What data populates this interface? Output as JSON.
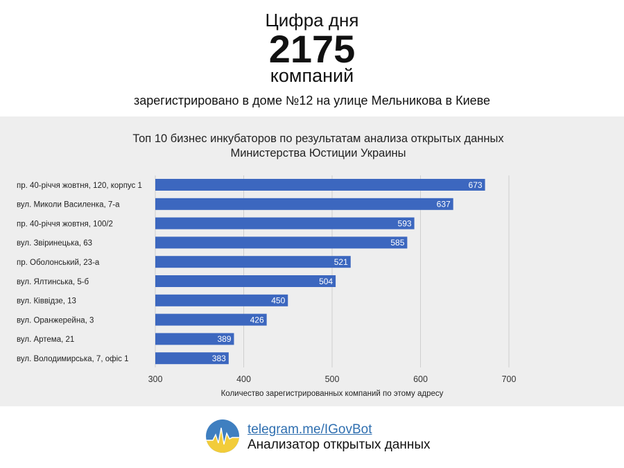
{
  "header": {
    "line1": "Цифра дня",
    "number": "2175",
    "line3": "компаний",
    "line4": "зарегистрировано в доме №12 на улице Мельникова в Киеве"
  },
  "chart_data": {
    "type": "bar",
    "orientation": "horizontal",
    "title_lines": [
      "Топ 10 бизнес инкубаторов по результатам анализа открытых данных",
      "Министерства Юстиции Украины"
    ],
    "categories": [
      "пр. 40-річчя жовтня, 120, корпус 1",
      "вул. Миколи Василенка, 7-а",
      "пр. 40-річчя жовтня, 100/2",
      "вул. Звіринецька, 63",
      "пр. Оболонський, 23-а",
      "вул. Ялтинська, 5-б",
      "вул. Ківвідзе, 13",
      "вул. Оранжерейна, 3",
      "вул. Артема, 21",
      "вул. Володимирська, 7, офіс 1"
    ],
    "values": [
      673,
      637,
      593,
      585,
      521,
      504,
      450,
      426,
      389,
      383
    ],
    "xlim": [
      300,
      700
    ],
    "xticks": [
      300,
      400,
      500,
      600,
      700
    ],
    "xlabel": "Количество зарегистрированных компаний по этому адресу",
    "grid": "vertical",
    "bar_color": "#3c67bf",
    "data_labels": "inside-end"
  },
  "footer": {
    "link": "telegram.me/IGovBot",
    "tagline": "Анализатор открытых данных"
  },
  "colors": {
    "panel_bg": "#eeeeee",
    "bar": "#3c67bf",
    "logo_blue": "#3f7fc0",
    "logo_yellow": "#f2cc3a",
    "link": "#2f6fb0"
  }
}
